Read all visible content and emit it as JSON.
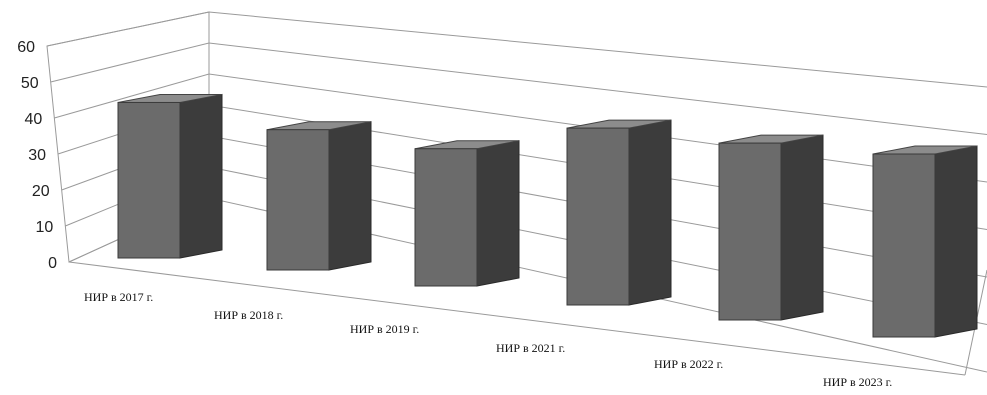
{
  "chart_data": {
    "type": "bar",
    "style": "3d-perspective",
    "categories": [
      "НИР в 2017 г.",
      "НИР в 2018 г.",
      "НИР в 2019 г.",
      "НИР в 2021 г.",
      "НИР в 2022 г.",
      "НИР в 2023 г."
    ],
    "values": [
      51,
      46,
      45,
      58,
      58,
      60
    ],
    "title": "",
    "xlabel": "",
    "ylabel": "",
    "ylim": [
      0,
      60
    ],
    "yticks": [
      0,
      10,
      20,
      30,
      40,
      50,
      60
    ],
    "grid": true,
    "legend": "none",
    "colors": {
      "bar_front": "#6b6b6b",
      "bar_side": "#3c3c3c",
      "bar_top": "#8c8c8c",
      "gridline": "#9a9a9a",
      "wall": "#ffffff"
    }
  }
}
